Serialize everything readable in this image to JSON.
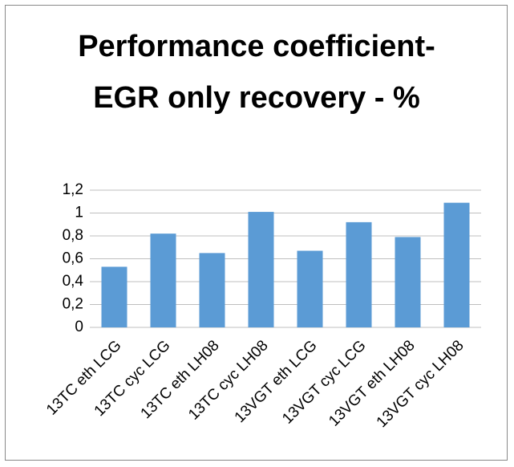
{
  "chart_data": {
    "type": "bar",
    "title": "Performance coefficient- EGR only recovery - %",
    "categories": [
      "13TC eth LCG",
      "13TC cyc LCG",
      "13TC eth LH08",
      "13TC cyc LH08",
      "13VGT eth LCG",
      "13VGT cyc LCG",
      "13VGT eth LH08",
      "13VGT cyc LH08"
    ],
    "values": [
      0.53,
      0.82,
      0.65,
      1.01,
      0.67,
      0.92,
      0.79,
      1.09
    ],
    "color": "#5b9bd5",
    "ylim": [
      0,
      1.2
    ],
    "yticks": [
      0,
      {
        "value": 0.2,
        "label": "0,2"
      },
      {
        "value": 0.4,
        "label": "0,4"
      },
      {
        "value": 0.6,
        "label": "0,6"
      },
      {
        "value": 0.8,
        "label": "0,8"
      },
      1,
      {
        "value": 1.2,
        "label": "1,2"
      }
    ],
    "grid": true
  }
}
